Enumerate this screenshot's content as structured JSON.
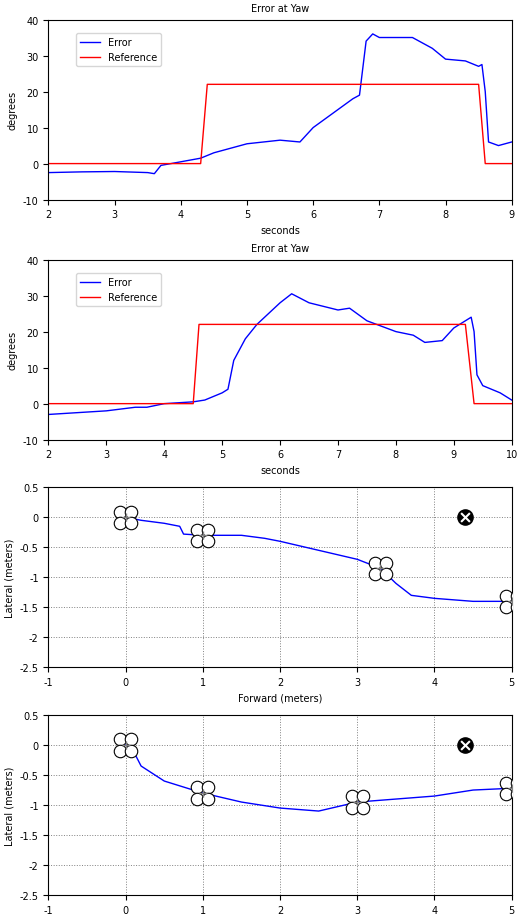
{
  "chart_data": [
    {
      "type": "line",
      "title": "Error at Yaw",
      "x_label": "seconds",
      "y_label": "degrees",
      "xlim": [
        2,
        9
      ],
      "ylim": [
        -10,
        40
      ],
      "xticks": [
        2,
        3,
        4,
        5,
        6,
        7,
        8,
        9
      ],
      "yticks": [
        -10,
        0,
        10,
        20,
        30,
        40
      ],
      "grid": false,
      "legend": "upper left",
      "series": [
        {
          "name": "Error",
          "color": "#0000ff",
          "x": [
            2,
            2.5,
            3,
            3.5,
            3.6,
            3.7,
            4,
            4.3,
            4.5,
            4.8,
            5,
            5.5,
            5.8,
            6,
            6.3,
            6.6,
            6.7,
            6.8,
            6.9,
            7,
            7.5,
            7.8,
            8,
            8.3,
            8.5,
            8.55,
            8.6,
            8.65,
            8.8,
            9
          ],
          "values": [
            -2.5,
            -2.3,
            -2.2,
            -2.5,
            -2.8,
            -0.5,
            0.5,
            1.5,
            3,
            4.5,
            5.5,
            6.5,
            6,
            10,
            14,
            18,
            19,
            34,
            36,
            35,
            35,
            32,
            29,
            28.5,
            27,
            27.5,
            20,
            6,
            5,
            6
          ]
        },
        {
          "name": "Reference",
          "color": "#ff0000",
          "x": [
            2,
            4.3,
            4.4,
            8.5,
            8.6,
            9
          ],
          "values": [
            0,
            0,
            22,
            22,
            0,
            0
          ]
        }
      ]
    },
    {
      "type": "line",
      "title": "Error at Yaw",
      "x_label": "seconds",
      "y_label": "degrees",
      "xlim": [
        2,
        10
      ],
      "ylim": [
        -10,
        40
      ],
      "xticks": [
        2,
        3,
        4,
        5,
        6,
        7,
        8,
        9,
        10
      ],
      "yticks": [
        -10,
        0,
        10,
        20,
        30,
        40
      ],
      "grid": false,
      "legend": "upper left",
      "series": [
        {
          "name": "Error",
          "color": "#0000ff",
          "x": [
            2,
            2.5,
            3,
            3.5,
            3.7,
            4,
            4.5,
            4.7,
            5,
            5.1,
            5.2,
            5.4,
            5.6,
            5.8,
            6,
            6.2,
            6.5,
            7,
            7.2,
            7.5,
            8,
            8.3,
            8.5,
            8.8,
            9,
            9.2,
            9.3,
            9.35,
            9.4,
            9.5,
            9.8,
            10
          ],
          "values": [
            -3,
            -2.5,
            -2,
            -1,
            -1,
            0,
            0.5,
            1,
            3,
            4,
            12,
            18,
            22,
            25,
            28,
            30.5,
            28,
            26,
            26.5,
            23,
            20,
            19,
            17,
            17.5,
            21,
            23,
            24,
            20,
            8,
            5,
            3,
            1
          ]
        },
        {
          "name": "Reference",
          "color": "#ff0000",
          "x": [
            2,
            4.5,
            4.6,
            9.2,
            9.35,
            10
          ],
          "values": [
            0,
            0,
            22,
            22,
            0,
            0
          ]
        }
      ]
    },
    {
      "type": "line",
      "x_label": "Forward (meters)",
      "y_label": "Lateral (meters)",
      "xlim": [
        -1,
        5
      ],
      "ylim": [
        -2.5,
        0.5
      ],
      "xticks": [
        -1,
        0,
        1,
        2,
        3,
        4,
        5
      ],
      "yticks": [
        -2.5,
        -2,
        -1.5,
        -1,
        -0.5,
        0,
        0.5
      ],
      "grid": true,
      "series": [
        {
          "color": "#0000ff",
          "marker": "drone",
          "x": [
            0,
            0.2,
            0.5,
            0.7,
            0.75,
            1,
            1.5,
            1.8,
            2,
            2.5,
            3,
            3.3,
            3.5,
            3.7,
            4,
            4.5,
            5
          ],
          "values": [
            0,
            -0.05,
            -0.1,
            -0.15,
            -0.28,
            -0.3,
            -0.3,
            -0.35,
            -0.4,
            -0.55,
            -0.7,
            -0.85,
            -1.1,
            -1.3,
            -1.35,
            -1.4,
            -1.4
          ]
        },
        {
          "type": "scatter",
          "color": "#000000",
          "marker": "target",
          "x": [
            4.4
          ],
          "values": [
            0
          ]
        }
      ]
    },
    {
      "type": "line",
      "y_label": "Lateral (meters)",
      "xlim": [
        -1,
        5
      ],
      "ylim": [
        -2.5,
        0.5
      ],
      "xticks": [
        -1,
        0,
        1,
        2,
        3,
        4,
        5
      ],
      "yticks": [
        -2.5,
        -2,
        -1.5,
        -1,
        -0.5,
        0,
        0.5
      ],
      "grid": true,
      "series": [
        {
          "color": "#0000ff",
          "marker": "drone",
          "x": [
            0,
            0.1,
            0.2,
            0.5,
            1,
            1.5,
            2,
            2.5,
            3,
            3.5,
            4,
            4.5,
            5
          ],
          "values": [
            0,
            -0.1,
            -0.35,
            -0.6,
            -0.8,
            -0.95,
            -1.05,
            -1.1,
            -0.95,
            -0.9,
            -0.85,
            -0.75,
            -0.72
          ]
        },
        {
          "type": "scatter",
          "color": "#000000",
          "marker": "target",
          "x": [
            4.4
          ],
          "values": [
            0
          ]
        }
      ]
    }
  ]
}
